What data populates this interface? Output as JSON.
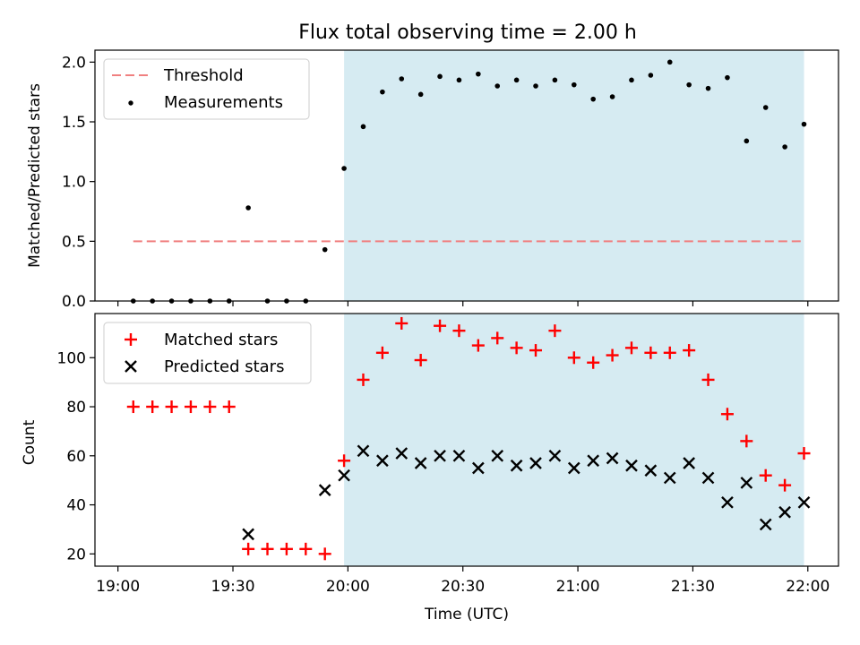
{
  "figure": {
    "title": "Flux total observing time = 2.00 h",
    "xlabel": "Time (UTC)"
  },
  "colors": {
    "threshold": "#f08080",
    "measurements": "#000000",
    "matched": "#ff0000",
    "predicted": "#000000",
    "shade": "#add8e6"
  },
  "chart_data": [
    {
      "type": "scatter",
      "panel": "top",
      "ylabel": "Matched/Predicted stars",
      "ylim": [
        0,
        2.1
      ],
      "yticks": [
        0.0,
        0.5,
        1.0,
        1.5,
        2.0
      ],
      "ytick_labels": [
        "0.0",
        "0.5",
        "1.0",
        "1.5",
        "2.0"
      ],
      "x_range": [
        "18:54",
        "22:08"
      ],
      "shaded_span": [
        "19:59",
        "21:59"
      ],
      "legend": {
        "placement": "top-left",
        "entries": [
          "Threshold",
          "Measurements"
        ]
      },
      "threshold": {
        "name": "Threshold",
        "value": 0.5,
        "x": [
          "19:04",
          "21:59"
        ]
      },
      "series": [
        {
          "name": "Measurements",
          "x": [
            "19:04",
            "19:09",
            "19:14",
            "19:19",
            "19:24",
            "19:29",
            "19:34",
            "19:39",
            "19:44",
            "19:49",
            "19:54",
            "19:59",
            "20:04",
            "20:09",
            "20:14",
            "20:19",
            "20:24",
            "20:29",
            "20:34",
            "20:39",
            "20:44",
            "20:49",
            "20:54",
            "20:59",
            "21:04",
            "21:09",
            "21:14",
            "21:19",
            "21:24",
            "21:29",
            "21:34",
            "21:39",
            "21:44",
            "21:49",
            "21:54",
            "21:59"
          ],
          "values": [
            0.0,
            0.0,
            0.0,
            0.0,
            0.0,
            0.0,
            0.78,
            0.0,
            0.0,
            0.0,
            0.43,
            1.11,
            1.46,
            1.75,
            1.86,
            1.73,
            1.88,
            1.85,
            1.9,
            1.8,
            1.85,
            1.8,
            1.85,
            1.81,
            1.69,
            1.71,
            1.85,
            1.89,
            2.0,
            1.81,
            1.78,
            1.87,
            1.34,
            1.62,
            1.29,
            1.48
          ]
        }
      ]
    },
    {
      "type": "scatter",
      "panel": "bottom",
      "ylabel": "Count",
      "ylim": [
        15,
        118
      ],
      "yticks": [
        20,
        40,
        60,
        80,
        100
      ],
      "ytick_labels": [
        "20",
        "40",
        "60",
        "80",
        "100"
      ],
      "x_range": [
        "18:54",
        "22:08"
      ],
      "xticks": [
        "19:00",
        "19:30",
        "20:00",
        "20:30",
        "21:00",
        "21:30",
        "22:00"
      ],
      "shaded_span": [
        "19:59",
        "21:59"
      ],
      "legend": {
        "placement": "top-left",
        "entries": [
          "Matched stars",
          "Predicted stars"
        ]
      },
      "series": [
        {
          "name": "Matched stars",
          "x": [
            "19:04",
            "19:09",
            "19:14",
            "19:19",
            "19:24",
            "19:29",
            "19:34",
            "19:39",
            "19:44",
            "19:49",
            "19:54",
            "19:59",
            "20:04",
            "20:09",
            "20:14",
            "20:19",
            "20:24",
            "20:29",
            "20:34",
            "20:39",
            "20:44",
            "20:49",
            "20:54",
            "20:59",
            "21:04",
            "21:09",
            "21:14",
            "21:19",
            "21:24",
            "21:29",
            "21:34",
            "21:39",
            "21:44",
            "21:49",
            "21:54",
            "21:59"
          ],
          "values": [
            80,
            80,
            80,
            80,
            80,
            80,
            22,
            22,
            22,
            22,
            20,
            58,
            91,
            102,
            114,
            99,
            113,
            111,
            105,
            108,
            104,
            103,
            111,
            100,
            98,
            101,
            104,
            102,
            102,
            103,
            91,
            77,
            66,
            52,
            48,
            61
          ]
        },
        {
          "name": "Predicted stars",
          "x": [
            "19:34",
            "19:54",
            "19:59",
            "20:04",
            "20:09",
            "20:14",
            "20:19",
            "20:24",
            "20:29",
            "20:34",
            "20:39",
            "20:44",
            "20:49",
            "20:54",
            "20:59",
            "21:04",
            "21:09",
            "21:14",
            "21:19",
            "21:24",
            "21:29",
            "21:34",
            "21:39",
            "21:44",
            "21:49",
            "21:54",
            "21:59"
          ],
          "values": [
            28,
            46,
            52,
            62,
            58,
            61,
            57,
            60,
            60,
            55,
            60,
            56,
            57,
            60,
            55,
            58,
            59,
            56,
            54,
            51,
            57,
            51,
            41,
            49,
            32,
            37,
            41
          ]
        }
      ]
    }
  ]
}
